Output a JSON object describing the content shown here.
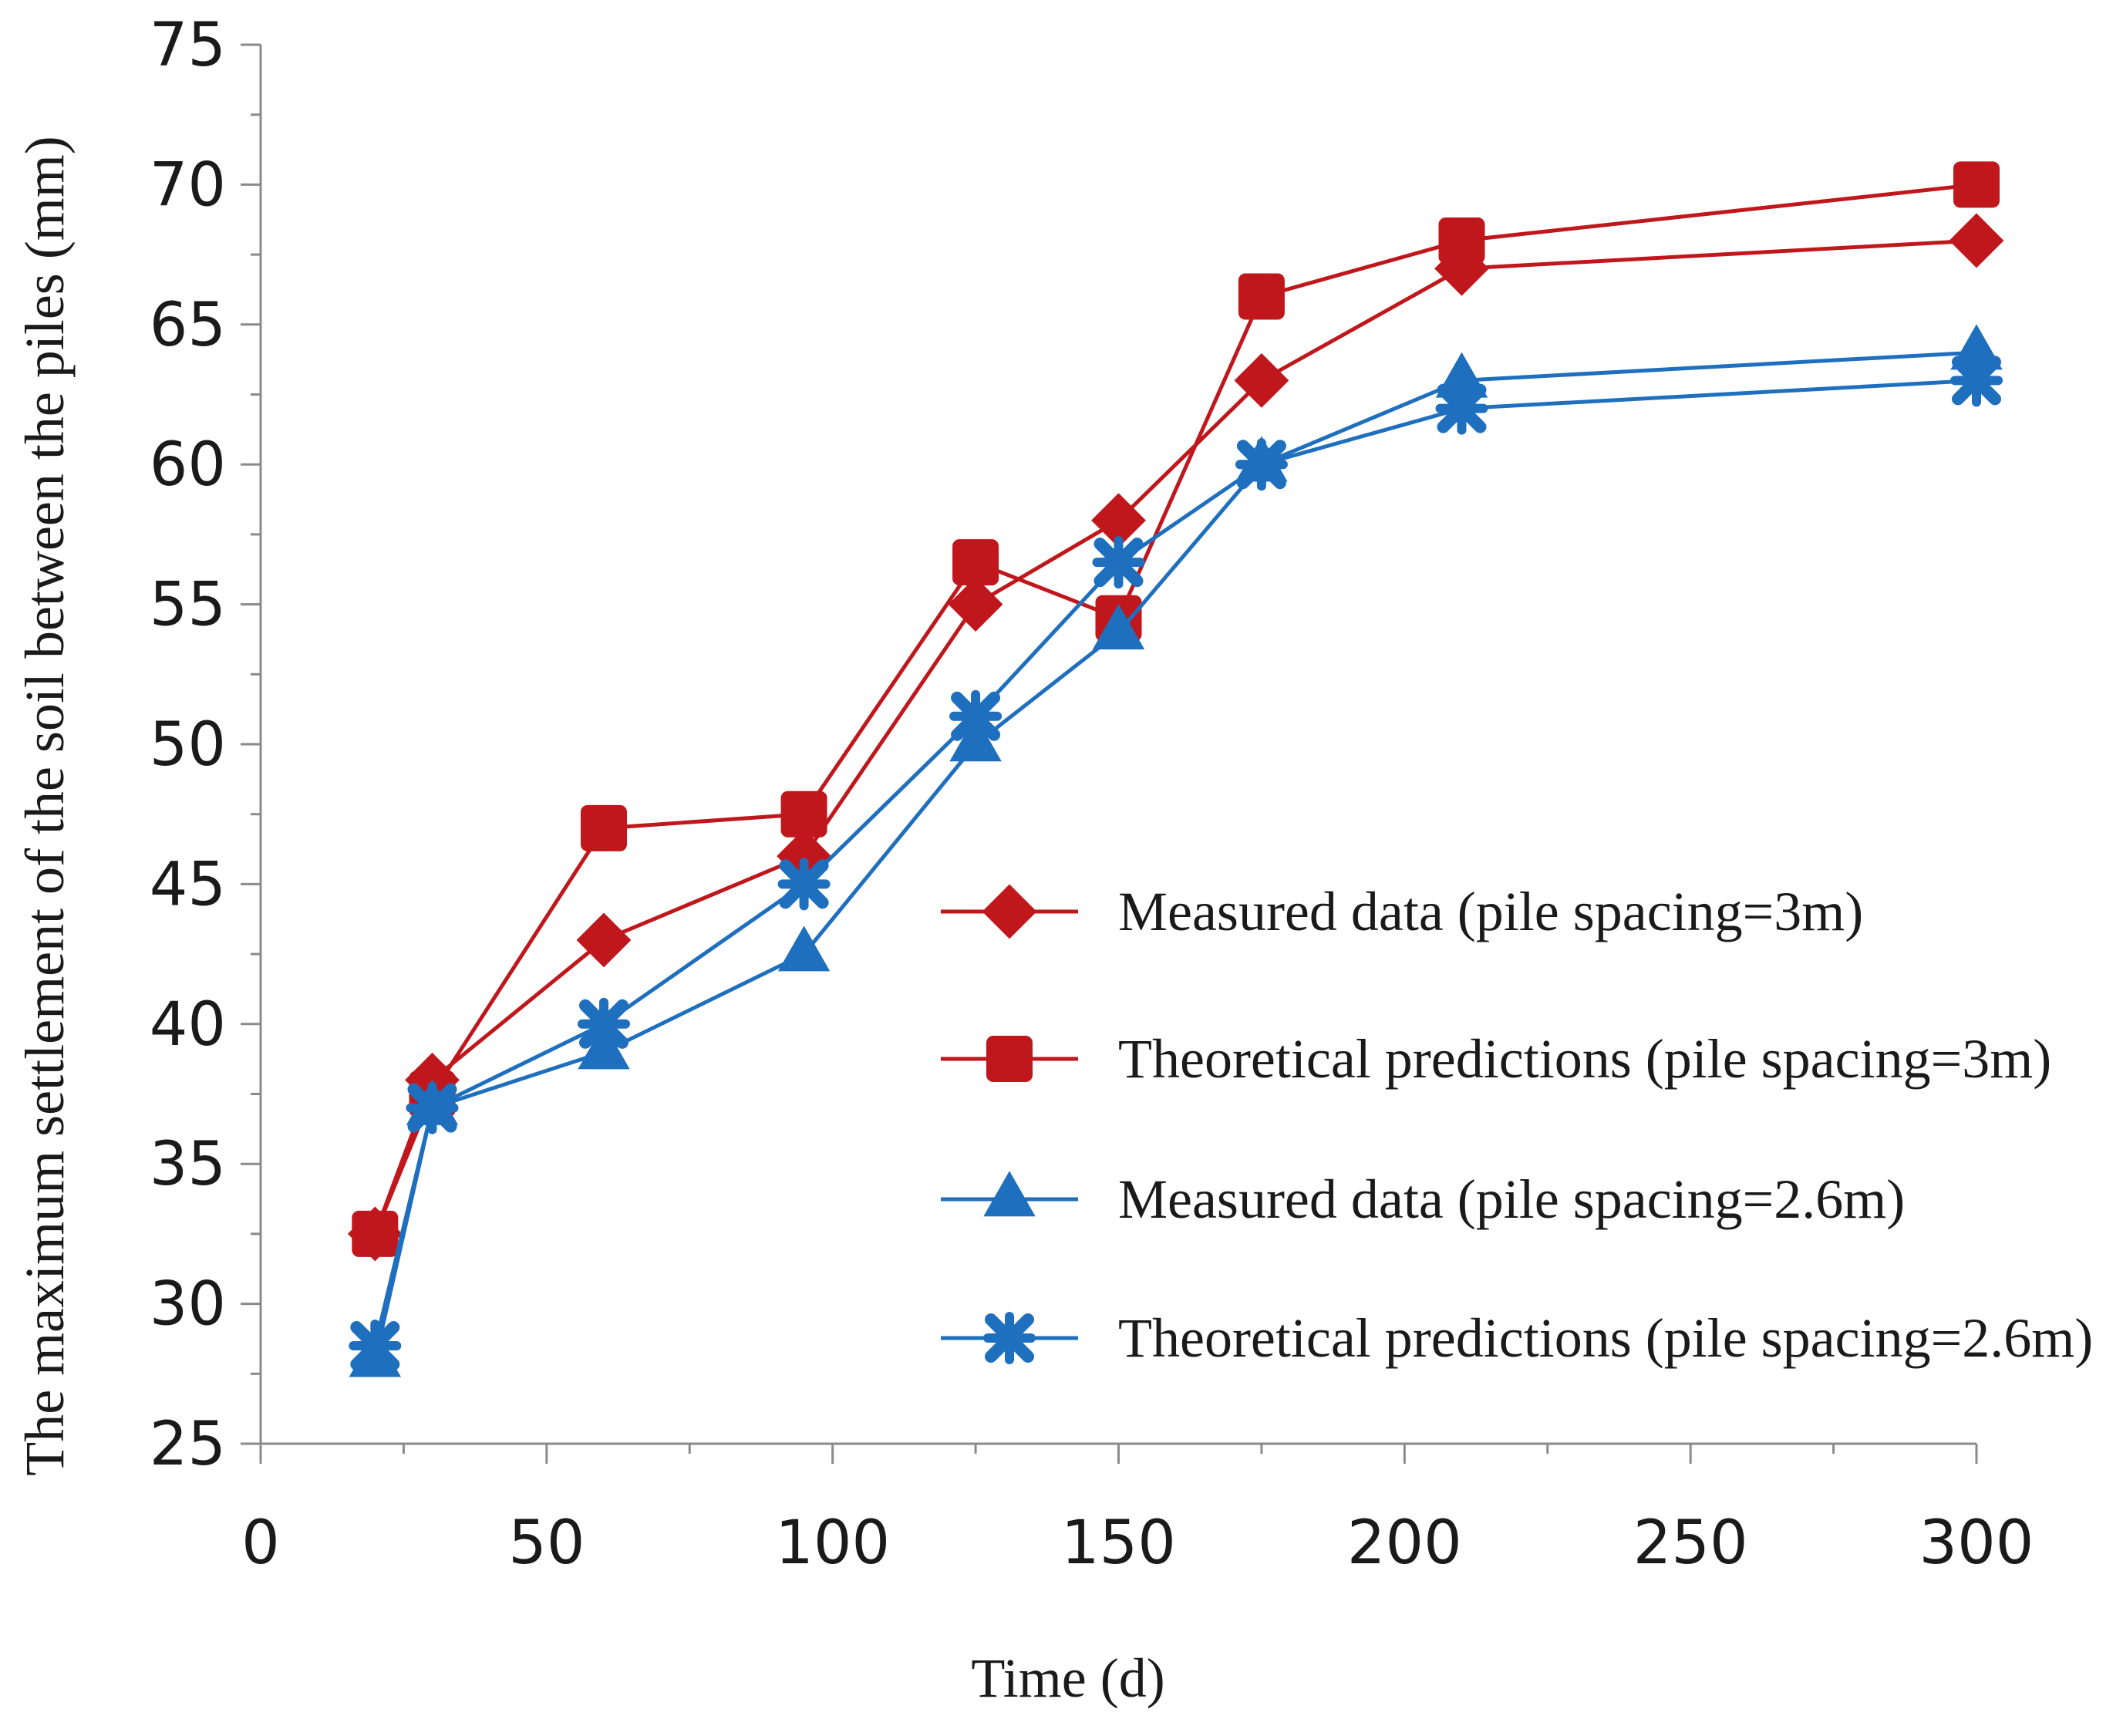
{
  "chart_data": {
    "type": "line",
    "title": "",
    "xlabel": "Time (d)",
    "ylabel": "The maximum settlement of the soil between the piles (mm)",
    "xlim": [
      0,
      300
    ],
    "ylim": [
      25,
      75
    ],
    "xticks": [
      0,
      50,
      100,
      150,
      200,
      250,
      300
    ],
    "yticks": [
      25,
      30,
      35,
      40,
      45,
      50,
      55,
      60,
      65,
      70,
      75
    ],
    "grid": false,
    "legend_position": "right",
    "x": [
      20,
      30,
      60,
      95,
      125,
      150,
      175,
      210,
      300
    ],
    "series": [
      {
        "name": "Measured data (pile spacing=3m)",
        "color": "#c0171c",
        "marker": "diamond",
        "values": [
          32.5,
          38,
          43,
          46,
          55,
          58,
          63,
          67,
          68
        ]
      },
      {
        "name": "Theoretical predictions (pile spacing=3m)",
        "color": "#c0171c",
        "marker": "square",
        "values": [
          32.5,
          37.5,
          47,
          47.5,
          56.5,
          54.5,
          66,
          68,
          70
        ]
      },
      {
        "name": "Measured data (pile spacing=2.6m)",
        "color": "#1f6fbf",
        "marker": "triangle",
        "values": [
          28,
          37,
          39,
          42.5,
          50,
          54,
          60,
          63,
          64
        ]
      },
      {
        "name": "Theoretical predictions (pile spacing=2.6m)",
        "color": "#1f6fbf",
        "marker": "cross",
        "values": [
          28.5,
          37,
          40,
          45,
          51,
          56.5,
          60,
          62,
          63
        ]
      }
    ]
  }
}
